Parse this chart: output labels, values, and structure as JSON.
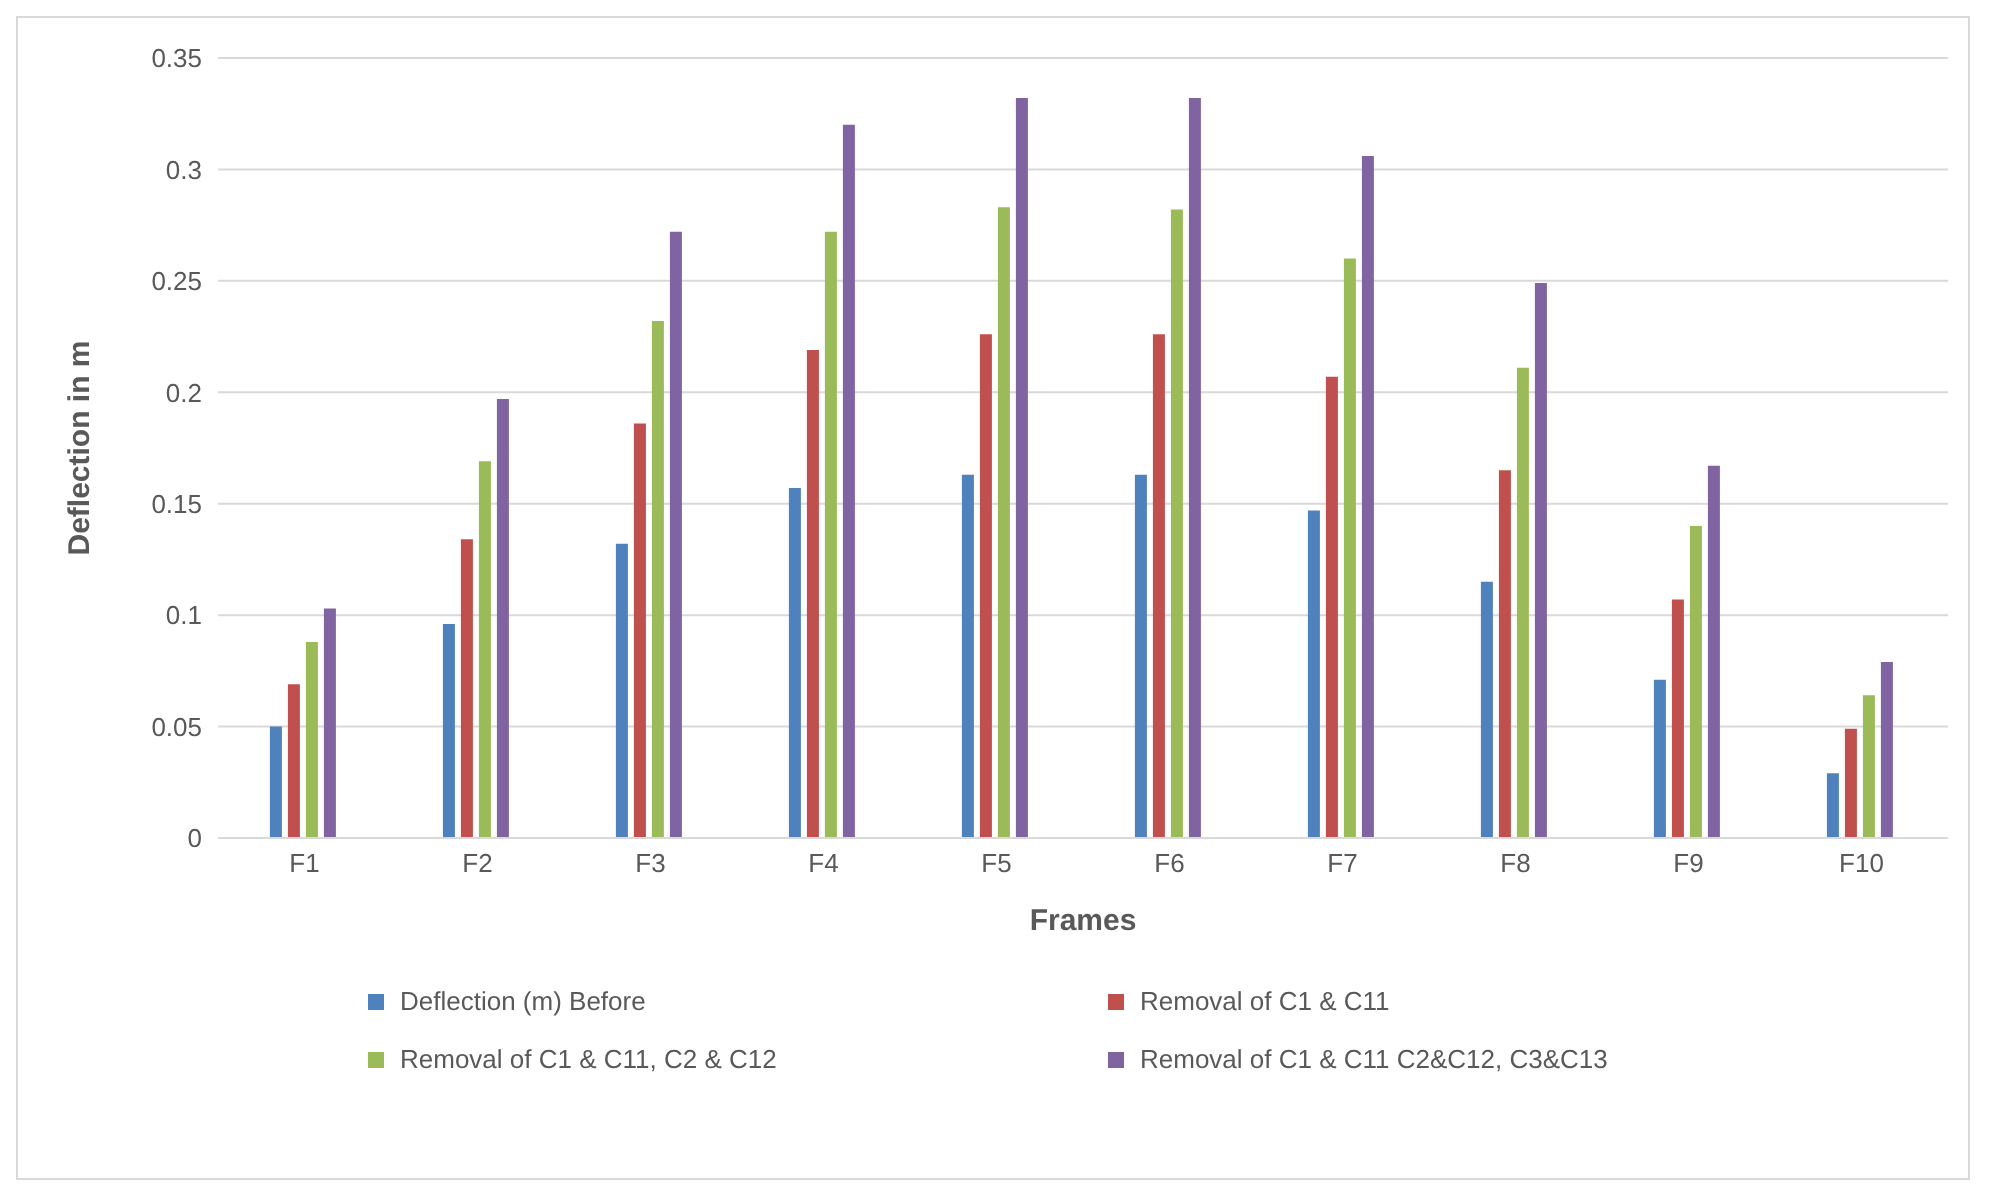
{
  "chart_data": {
    "type": "bar",
    "xlabel": "Frames",
    "ylabel": "Deflection in m",
    "categories": [
      "F1",
      "F2",
      "F3",
      "F4",
      "F5",
      "F6",
      "F7",
      "F8",
      "F9",
      "F10"
    ],
    "series": [
      {
        "name": "Deflection (m) Before",
        "color": "#4f81bd",
        "values": [
          0.05,
          0.096,
          0.132,
          0.157,
          0.163,
          0.163,
          0.147,
          0.115,
          0.071,
          0.029
        ]
      },
      {
        "name": "Removal of C1 & C11",
        "color": "#c0504d",
        "values": [
          0.069,
          0.134,
          0.186,
          0.219,
          0.226,
          0.226,
          0.207,
          0.165,
          0.107,
          0.049
        ]
      },
      {
        "name": "Removal of C1 & C11, C2 & C12",
        "color": "#9bbb59",
        "values": [
          0.088,
          0.169,
          0.232,
          0.272,
          0.283,
          0.282,
          0.26,
          0.211,
          0.14,
          0.064
        ]
      },
      {
        "name": "Removal of C1 & C11 C2&C12, C3&C13",
        "color": "#8064a2",
        "values": [
          0.103,
          0.197,
          0.272,
          0.32,
          0.332,
          0.332,
          0.306,
          0.249,
          0.167,
          0.079
        ]
      }
    ],
    "ylim": [
      0,
      0.35
    ],
    "yticks": [
      0,
      0.05,
      0.1,
      0.15,
      0.2,
      0.25,
      0.3,
      0.35
    ],
    "grid": "y",
    "legend": "bottom"
  }
}
